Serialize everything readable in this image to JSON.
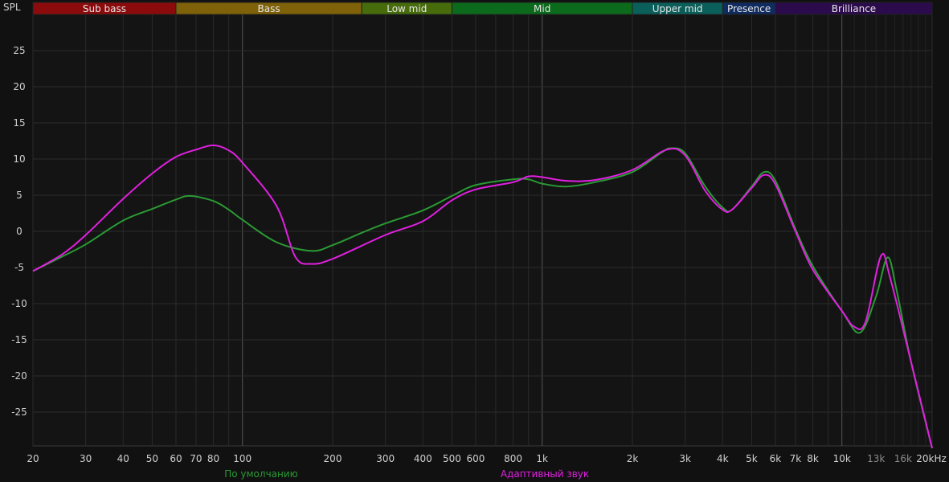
{
  "chart_data": {
    "type": "line",
    "ylabel": "SPL",
    "x_scale": "log",
    "xlim": [
      20,
      20000
    ],
    "ylim": [
      -29.7,
      30
    ],
    "grid": true,
    "x_ticks": [
      {
        "v": 20,
        "label": "20"
      },
      {
        "v": 30,
        "label": "30"
      },
      {
        "v": 40,
        "label": "40"
      },
      {
        "v": 50,
        "label": "50"
      },
      {
        "v": 60,
        "label": "60"
      },
      {
        "v": 70,
        "label": "70"
      },
      {
        "v": 80,
        "label": "80"
      },
      {
        "v": 100,
        "label": "100"
      },
      {
        "v": 200,
        "label": "200"
      },
      {
        "v": 300,
        "label": "300"
      },
      {
        "v": 400,
        "label": "400"
      },
      {
        "v": 500,
        "label": "500"
      },
      {
        "v": 600,
        "label": "600"
      },
      {
        "v": 800,
        "label": "800"
      },
      {
        "v": 1000,
        "label": "1k"
      },
      {
        "v": 2000,
        "label": "2k"
      },
      {
        "v": 3000,
        "label": "3k"
      },
      {
        "v": 4000,
        "label": "4k"
      },
      {
        "v": 5000,
        "label": "5k"
      },
      {
        "v": 6000,
        "label": "6k"
      },
      {
        "v": 7000,
        "label": "7k"
      },
      {
        "v": 8000,
        "label": "8k"
      },
      {
        "v": 10000,
        "label": "10k"
      },
      {
        "v": 13000,
        "label": "13k",
        "dim": true
      },
      {
        "v": 16000,
        "label": "16k",
        "dim": true
      },
      {
        "v": 20000,
        "label": "20kHz"
      }
    ],
    "y_ticks": [
      25,
      20,
      15,
      10,
      5,
      0,
      -5,
      -10,
      -15,
      -20,
      -25
    ],
    "bands": [
      {
        "name": "Sub bass",
        "from": 20,
        "to": 60,
        "color": "#8b0a0c"
      },
      {
        "name": "Bass",
        "from": 60,
        "to": 250,
        "color": "#7e6108"
      },
      {
        "name": "Low mid",
        "from": 250,
        "to": 500,
        "color": "#476c0c"
      },
      {
        "name": "Mid",
        "from": 500,
        "to": 2000,
        "color": "#0b6a1c"
      },
      {
        "name": "Upper mid",
        "from": 2000,
        "to": 4000,
        "color": "#0b5f5b"
      },
      {
        "name": "Presence",
        "from": 4000,
        "to": 6000,
        "color": "#0f2b5f"
      },
      {
        "name": "Brilliance",
        "from": 6000,
        "to": 20000,
        "color": "#2b0b4b"
      }
    ],
    "series": [
      {
        "name": "По умолчанию",
        "color": "#2a9a34",
        "points": [
          [
            20,
            -5.5
          ],
          [
            25,
            -3.5
          ],
          [
            30,
            -1.8
          ],
          [
            40,
            1.5
          ],
          [
            50,
            3.1
          ],
          [
            60,
            4.4
          ],
          [
            67,
            4.9
          ],
          [
            80,
            4.2
          ],
          [
            90,
            3
          ],
          [
            100,
            1.6
          ],
          [
            130,
            -1.5
          ],
          [
            170,
            -2.7
          ],
          [
            200,
            -1.9
          ],
          [
            250,
            -0.2
          ],
          [
            300,
            1.1
          ],
          [
            400,
            2.9
          ],
          [
            500,
            4.9
          ],
          [
            600,
            6.4
          ],
          [
            800,
            7.2
          ],
          [
            900,
            7.2
          ],
          [
            1000,
            6.6
          ],
          [
            1200,
            6.2
          ],
          [
            1500,
            6.8
          ],
          [
            2000,
            8.2
          ],
          [
            2500,
            10.9
          ],
          [
            2700,
            11.5
          ],
          [
            3000,
            10.8
          ],
          [
            3500,
            6.2
          ],
          [
            4000,
            3.3
          ],
          [
            4300,
            3
          ],
          [
            5000,
            6.2
          ],
          [
            5500,
            8.2
          ],
          [
            6000,
            7
          ],
          [
            7000,
            0.3
          ],
          [
            8000,
            -4.8
          ],
          [
            10000,
            -11
          ],
          [
            11500,
            -14
          ],
          [
            13000,
            -9
          ],
          [
            14200,
            -3.6
          ],
          [
            15200,
            -8
          ],
          [
            17000,
            -18
          ],
          [
            20000,
            -30
          ]
        ]
      },
      {
        "name": "Адаптивный звук",
        "color": "#e020e0",
        "points": [
          [
            20,
            -5.5
          ],
          [
            25,
            -3.2
          ],
          [
            30,
            -0.5
          ],
          [
            40,
            4.5
          ],
          [
            50,
            8
          ],
          [
            60,
            10.3
          ],
          [
            70,
            11.3
          ],
          [
            80,
            11.9
          ],
          [
            90,
            11.2
          ],
          [
            100,
            9.5
          ],
          [
            130,
            3.5
          ],
          [
            150,
            -3.5
          ],
          [
            170,
            -4.5
          ],
          [
            200,
            -3.8
          ],
          [
            300,
            -0.5
          ],
          [
            400,
            1.4
          ],
          [
            500,
            4.3
          ],
          [
            600,
            5.8
          ],
          [
            800,
            6.8
          ],
          [
            900,
            7.6
          ],
          [
            1000,
            7.5
          ],
          [
            1200,
            7
          ],
          [
            1500,
            7.1
          ],
          [
            2000,
            8.5
          ],
          [
            2600,
            11.3
          ],
          [
            3000,
            10.5
          ],
          [
            3500,
            5.6
          ],
          [
            4000,
            3
          ],
          [
            4300,
            3
          ],
          [
            5000,
            6
          ],
          [
            5500,
            7.8
          ],
          [
            6000,
            6.5
          ],
          [
            7000,
            0
          ],
          [
            8000,
            -5.3
          ],
          [
            10000,
            -11
          ],
          [
            11000,
            -13.2
          ],
          [
            12000,
            -12.5
          ],
          [
            13500,
            -3.4
          ],
          [
            14500,
            -6.5
          ],
          [
            17000,
            -18
          ],
          [
            20000,
            -30
          ]
        ]
      }
    ]
  }
}
